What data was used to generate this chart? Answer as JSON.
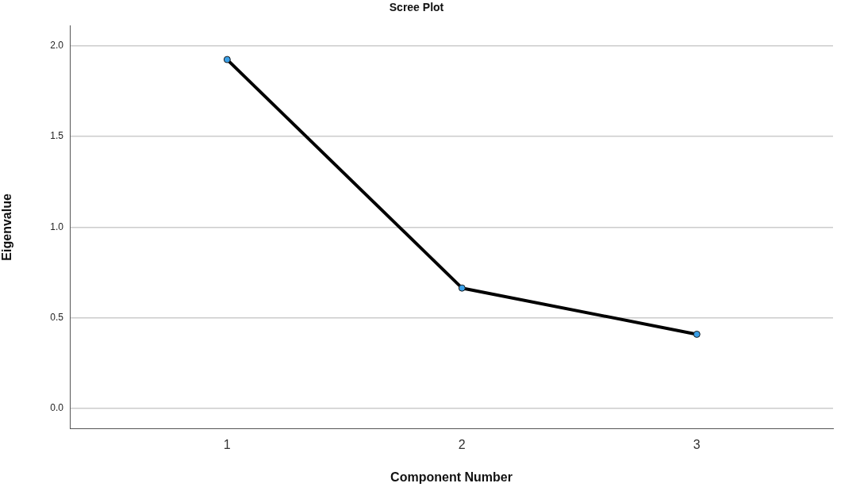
{
  "chart_data": {
    "type": "line",
    "title": "Scree Plot",
    "xlabel": "Component Number",
    "ylabel": "Eigenvalue",
    "x": [
      1,
      2,
      3
    ],
    "xlim": [
      0.33,
      3.58
    ],
    "xticks": [
      1,
      2,
      3
    ],
    "ylim": [
      -0.11,
      2.11
    ],
    "yticks": [
      {
        "value": 0,
        "label": "0.0"
      },
      {
        "value": 0.5,
        "label": "0.5"
      },
      {
        "value": 1,
        "label": "1.0"
      },
      {
        "value": 1.5,
        "label": "1.5"
      },
      {
        "value": 2,
        "label": "2.0"
      }
    ],
    "series": [
      {
        "color": "#000000",
        "values": [
          1.925,
          0.664,
          0.409
        ]
      }
    ],
    "marker": "circle",
    "line_style": "solid",
    "grid": "y",
    "legend": false
  }
}
